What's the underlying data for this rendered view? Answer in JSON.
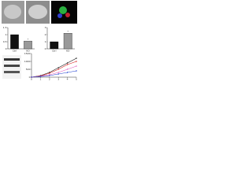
{
  "chart_data": [
    {
      "type": "bar",
      "categories": [
        "Ctrl",
        "KD"
      ],
      "values": [
        1,
        0.55
      ],
      "colors": [
        "#111111",
        "#999999"
      ],
      "ylim": [
        0,
        1.5
      ],
      "yticks": [
        0,
        0.5,
        1,
        1.5
      ],
      "annotation": "*"
    },
    {
      "type": "bar",
      "categories": [
        "Ctrl",
        "KD"
      ],
      "values": [
        1,
        2.2
      ],
      "colors": [
        "#111111",
        "#999999"
      ],
      "ylim": [
        0,
        3
      ],
      "yticks": [
        0,
        1,
        2,
        3
      ],
      "annotation": "*"
    },
    {
      "type": "line",
      "x": [
        0,
        1,
        2,
        3,
        4,
        5
      ],
      "xlim": [
        0,
        5
      ],
      "xticks": [
        0,
        1,
        2,
        3,
        4,
        5
      ],
      "ylim": [
        0,
        1500
      ],
      "yticks": [
        0,
        500,
        1000,
        1500
      ],
      "series": [
        {
          "color": "#111111",
          "values": [
            0,
            100,
            300,
            600,
            900,
            1200
          ]
        },
        {
          "color": "#d62020",
          "values": [
            0,
            80,
            250,
            500,
            800,
            1000
          ]
        },
        {
          "color": "#e060c0",
          "values": [
            0,
            60,
            150,
            300,
            500,
            700
          ]
        },
        {
          "color": "#2040d0",
          "values": [
            0,
            40,
            100,
            200,
            300,
            400
          ]
        }
      ]
    }
  ]
}
